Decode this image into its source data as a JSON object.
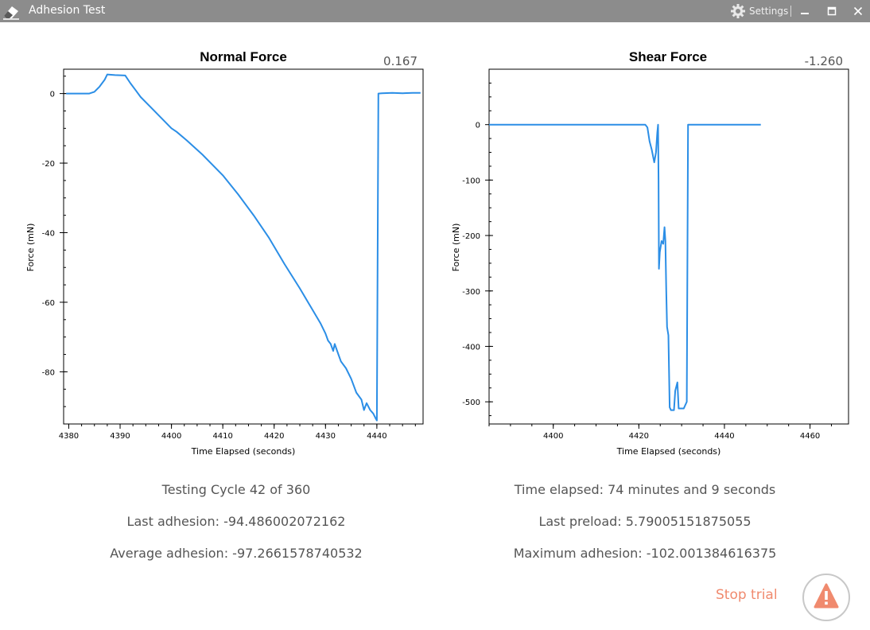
{
  "window": {
    "title": "Adhesion Test",
    "settings_label": "Settings",
    "icons": {
      "app": "eraser-icon",
      "settings": "gear-icon",
      "minimize": "minimize-icon",
      "maximize": "maximize-icon",
      "close": "close-icon"
    }
  },
  "colors": {
    "titlebar": "#8c8c8c",
    "series": "#2b8ee6",
    "stop": "#f08a6e",
    "readout": "#555555"
  },
  "normal_chart": {
    "title": "Normal Force",
    "readout": "0.167",
    "xlabel": "Time Elapsed (seconds)",
    "ylabel": "Force (mN)"
  },
  "shear_chart": {
    "title": "Shear Force",
    "readout": "-1.260",
    "xlabel": "Time Elapsed (seconds)",
    "ylabel": "Force (mN)"
  },
  "stats": {
    "cycle": "Testing Cycle 42 of 360",
    "last_adhesion": "Last adhesion: -94.486002072162",
    "average_adhesion": "Average adhesion: -97.2661578740532",
    "time_elapsed": "Time elapsed: 74 minutes and 9 seconds",
    "last_preload": "Last preload: 5.79005151875055",
    "maximum_adhesion": "Maximum adhesion: -102.001384616375"
  },
  "stop": {
    "label": "Stop trial",
    "icon": "warning-icon"
  },
  "chart_data": [
    {
      "type": "line",
      "title": "Normal Force",
      "xlabel": "Time Elapsed (seconds)",
      "ylabel": "Force (mN)",
      "xlim": [
        4379,
        4449
      ],
      "ylim": [
        -95,
        7
      ],
      "xticks": [
        4380,
        4390,
        4400,
        4410,
        4420,
        4430,
        4440
      ],
      "yticks": [
        0,
        -20,
        -40,
        -60,
        -80
      ],
      "grid": false,
      "series": [
        {
          "points": [
            [
              4379.5,
              0
            ],
            [
              4384,
              0
            ],
            [
              4385,
              0.5
            ],
            [
              4386,
              2
            ],
            [
              4387,
              4
            ],
            [
              4387.5,
              5.5
            ],
            [
              4389,
              5.3
            ],
            [
              4391,
              5.2
            ],
            [
              4392,
              3
            ],
            [
              4393,
              1
            ],
            [
              4394,
              -1
            ],
            [
              4396,
              -4
            ],
            [
              4398,
              -7
            ],
            [
              4400,
              -10
            ],
            [
              4401,
              -11
            ],
            [
              4403,
              -13.5
            ],
            [
              4406,
              -17.5
            ],
            [
              4410,
              -23.5
            ],
            [
              4413,
              -29
            ],
            [
              4416,
              -35
            ],
            [
              4419,
              -41.5
            ],
            [
              4422,
              -49
            ],
            [
              4425,
              -56
            ],
            [
              4427,
              -61
            ],
            [
              4429,
              -66
            ],
            [
              4430,
              -69
            ],
            [
              4430.5,
              -71
            ],
            [
              4431,
              -72
            ],
            [
              4431.5,
              -74
            ],
            [
              4431.8,
              -72
            ],
            [
              4432.5,
              -75
            ],
            [
              4433,
              -77
            ],
            [
              4434,
              -79
            ],
            [
              4435,
              -82
            ],
            [
              4436,
              -86
            ],
            [
              4437,
              -88
            ],
            [
              4437.5,
              -91
            ],
            [
              4438,
              -89
            ],
            [
              4438.7,
              -91
            ],
            [
              4439.3,
              -92
            ],
            [
              4439.8,
              -93.5
            ],
            [
              4440,
              -94
            ],
            [
              4440.3,
              0
            ],
            [
              4441,
              0.1
            ],
            [
              4443,
              0.2
            ],
            [
              4445,
              0.1
            ],
            [
              4447,
              0.2
            ],
            [
              4448.5,
              0.2
            ]
          ]
        }
      ]
    },
    {
      "type": "line",
      "title": "Shear Force",
      "xlabel": "Time Elapsed (seconds)",
      "ylabel": "Force (mN)",
      "xlim": [
        4385,
        4469
      ],
      "ylim": [
        -540,
        100
      ],
      "xticks": [
        4400,
        4420,
        4440,
        4460
      ],
      "yticks": [
        0,
        -100,
        -200,
        -300,
        -400,
        -500
      ],
      "grid": false,
      "series": [
        {
          "points": [
            [
              4385,
              0
            ],
            [
              4400,
              0
            ],
            [
              4410,
              0
            ],
            [
              4420,
              0
            ],
            [
              4421.5,
              0
            ],
            [
              4422,
              -5
            ],
            [
              4422.5,
              -30
            ],
            [
              4423,
              -45
            ],
            [
              4423.6,
              -68
            ],
            [
              4424,
              -50
            ],
            [
              4424.3,
              -15
            ],
            [
              4424.5,
              0
            ],
            [
              4424.6,
              -100
            ],
            [
              4424.7,
              -260
            ],
            [
              4424.9,
              -230
            ],
            [
              4425.3,
              -210
            ],
            [
              4425.7,
              -215
            ],
            [
              4426,
              -185
            ],
            [
              4426.2,
              -210
            ],
            [
              4426.4,
              -300
            ],
            [
              4426.6,
              -365
            ],
            [
              4426.9,
              -380
            ],
            [
              4427.2,
              -510
            ],
            [
              4427.5,
              -515
            ],
            [
              4428.2,
              -515
            ],
            [
              4428.5,
              -480
            ],
            [
              4429,
              -465
            ],
            [
              4429.3,
              -512
            ],
            [
              4430.5,
              -512
            ],
            [
              4431.2,
              -500
            ],
            [
              4431.5,
              0
            ],
            [
              4433,
              0
            ],
            [
              4440,
              0
            ],
            [
              4448.5,
              0
            ]
          ]
        }
      ]
    }
  ]
}
